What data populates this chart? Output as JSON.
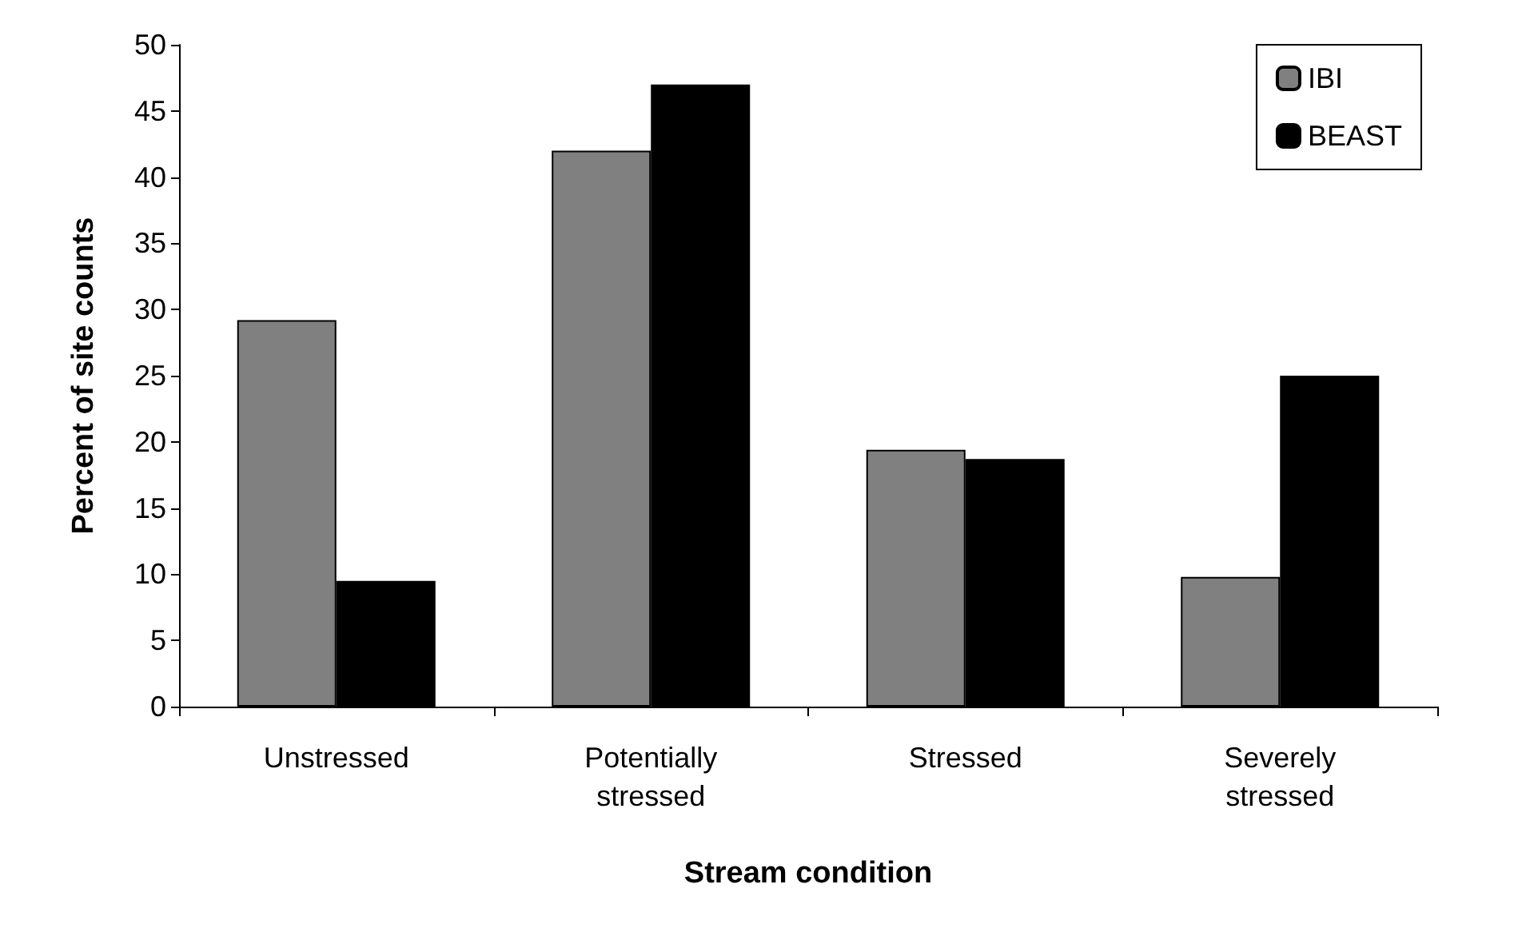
{
  "chart_data": {
    "type": "bar",
    "xlabel": "Stream condition",
    "ylabel": "Percent of site counts",
    "categories": [
      "Unstressed",
      "Potentially\nstressed",
      "Stressed",
      "Severely\nstressed"
    ],
    "series": [
      {
        "name": "IBI",
        "color": "#808080",
        "values": [
          29.2,
          42,
          19.4,
          9.8
        ]
      },
      {
        "name": "BEAST",
        "color": "#000000",
        "values": [
          9.5,
          47,
          18.7,
          25
        ]
      }
    ],
    "ylim": [
      0,
      50
    ],
    "yticks": [
      0,
      5,
      10,
      15,
      20,
      25,
      30,
      35,
      40,
      45,
      50
    ],
    "grid": false,
    "legend": "top right"
  }
}
